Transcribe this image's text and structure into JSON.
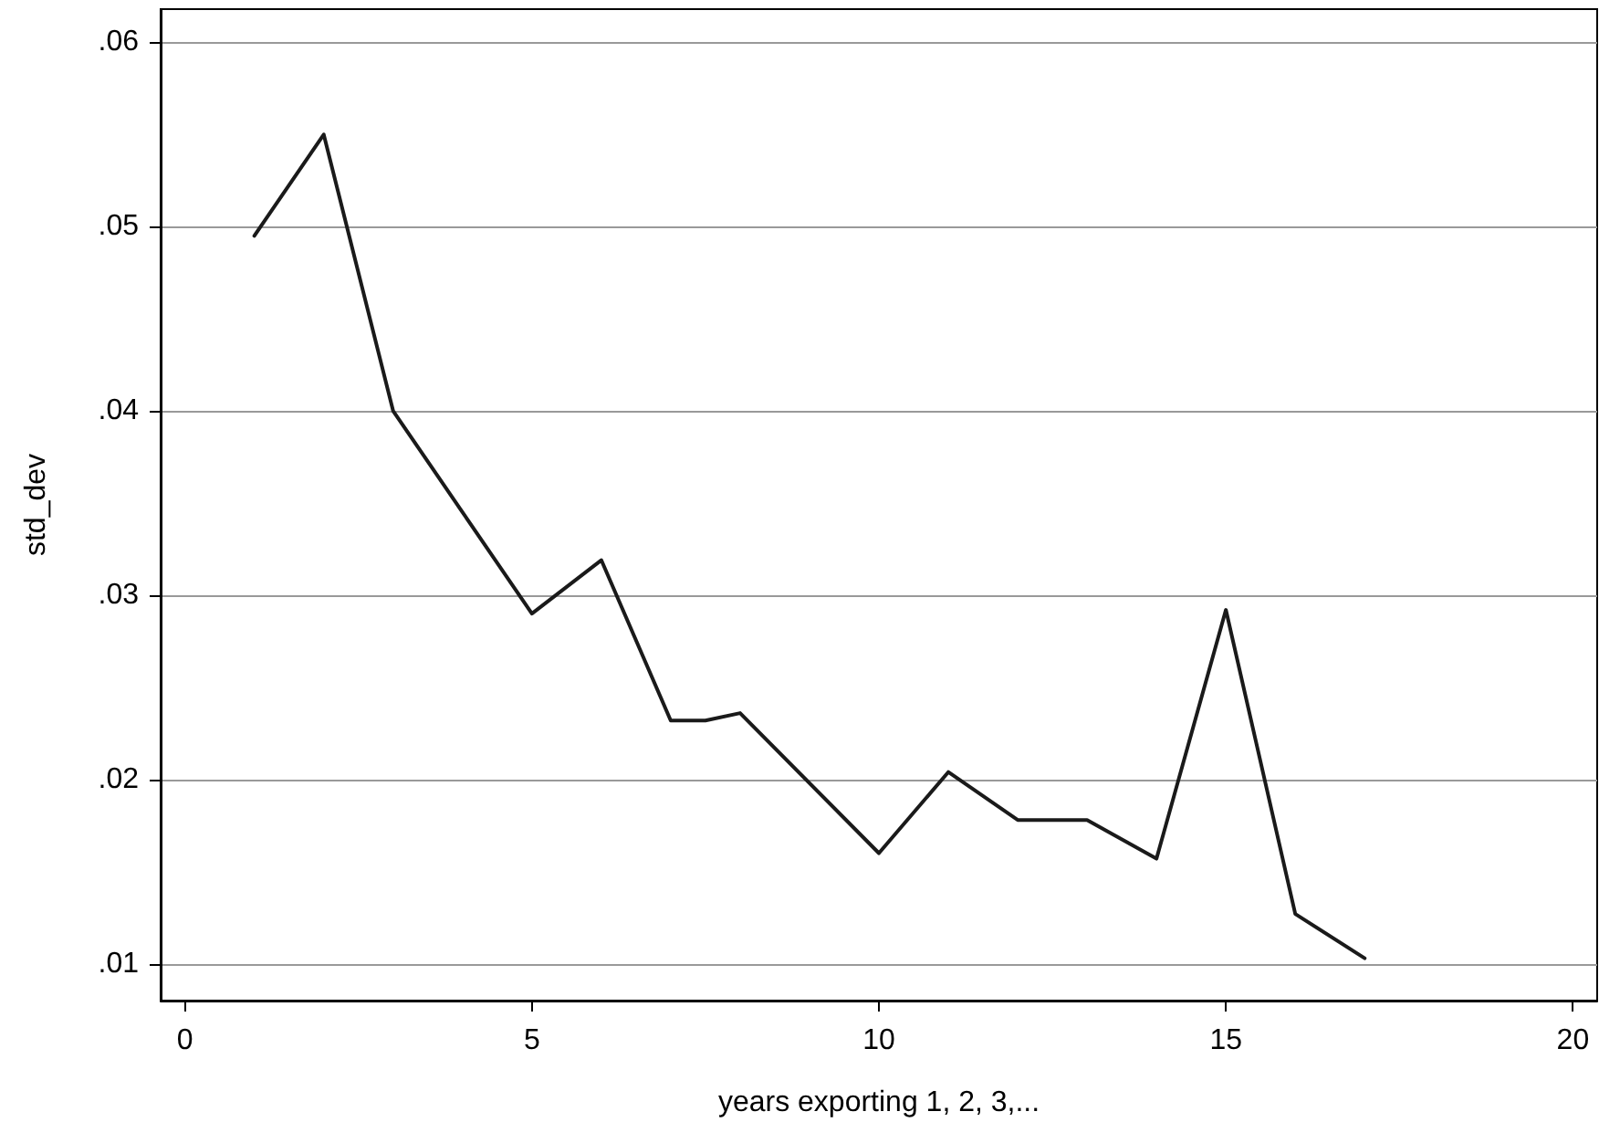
{
  "chart_data": {
    "type": "line",
    "xlabel": "years exporting 1, 2, 3,...",
    "ylabel": "std_dev",
    "x": [
      1,
      2,
      3,
      4,
      5,
      6,
      7,
      7.5,
      8,
      10,
      11,
      12,
      13,
      14,
      15,
      16,
      17
    ],
    "series": [
      {
        "color": "#1a1a1a",
        "values": [
          0.0495,
          0.055,
          0.04,
          0.0345,
          0.029,
          0.0319,
          0.0232,
          0.0232,
          0.0236,
          0.016,
          0.0204,
          0.0178,
          0.0178,
          0.0157,
          0.0292,
          0.0127,
          0.0103
        ]
      }
    ],
    "xlim": [
      -0.35,
      20.35
    ],
    "xticks": [
      0,
      5,
      10,
      15,
      20
    ],
    "ylim": [
      0.008,
      0.0618
    ],
    "yticks": [
      {
        "value": 0.01,
        "label": ".01"
      },
      {
        "value": 0.02,
        "label": ".02"
      },
      {
        "value": 0.03,
        "label": ".03"
      },
      {
        "value": 0.04,
        "label": ".04"
      },
      {
        "value": 0.05,
        "label": ".05"
      },
      {
        "value": 0.06,
        "label": ".06"
      }
    ],
    "grid": "y",
    "marker": "none",
    "line_style": "solid"
  }
}
